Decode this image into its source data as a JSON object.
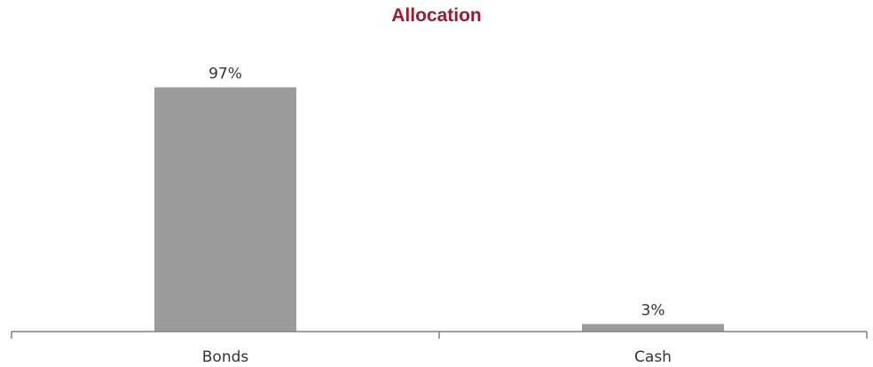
{
  "chart_data": {
    "type": "bar",
    "title": "Allocation",
    "categories": [
      "Bonds",
      "Cash"
    ],
    "values": [
      97,
      3
    ],
    "value_labels": [
      "97%",
      "3%"
    ],
    "xlabel": "",
    "ylabel": "",
    "ylim": [
      0,
      100
    ],
    "grid": false,
    "legend": "none"
  },
  "colors": {
    "title": "#9b1b30",
    "bar": "#9b9b9b",
    "axis": "#7f7f7f",
    "text": "#333333"
  }
}
